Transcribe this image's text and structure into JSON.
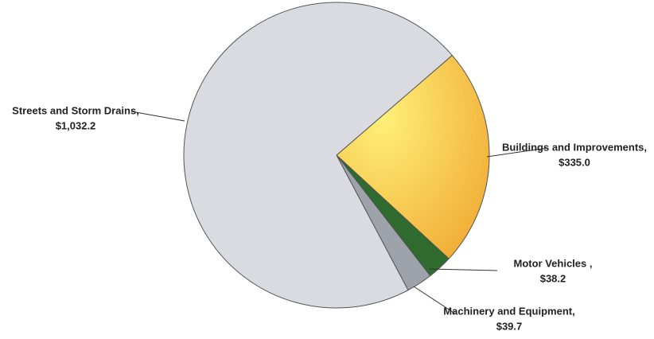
{
  "chart_data": {
    "type": "pie",
    "categories": [
      "Streets and Storm Drains,",
      "Buildings and Improvements,",
      "Motor Vehicles ,",
      "Machinery and Equipment,"
    ],
    "values": [
      1032.2,
      335.0,
      38.2,
      39.7
    ],
    "value_labels": [
      "$1,032.2",
      "$335.0",
      "$38.2",
      "$39.7"
    ],
    "colors": [
      "#d9dbe0",
      "#f4c443",
      "#2f6a2f",
      "#9ea3ab"
    ]
  }
}
